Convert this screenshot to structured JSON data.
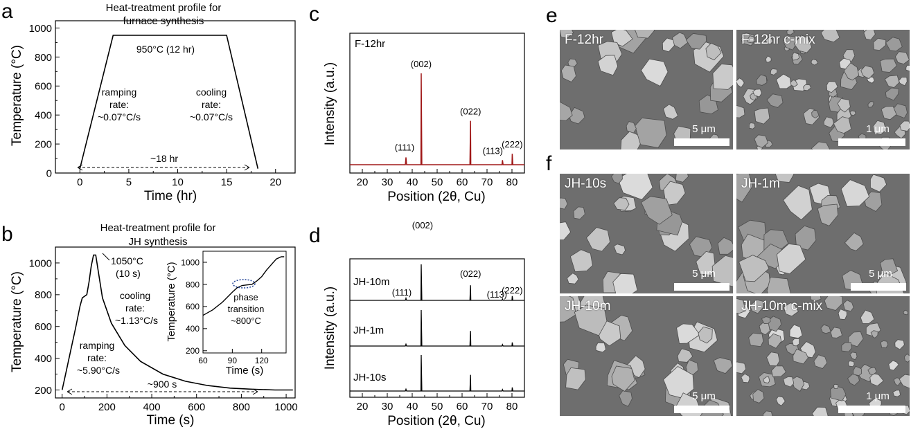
{
  "panels": {
    "a": {
      "letter": "a",
      "title_line1": "Heat-treatment profile for",
      "title_line2": "furnace synthesis",
      "xlabel": "Time (hr)",
      "ylabel": "Temperature (°C)",
      "hold_label": "950°C (12 hr)",
      "ramp_l1": "ramping",
      "ramp_l2": "rate:",
      "ramp_l3": "~0.07°C/s",
      "cool_l1": "cooling",
      "cool_l2": "rate:",
      "cool_l3": "~0.07°C/s",
      "duration_label": "~18 hr"
    },
    "b": {
      "letter": "b",
      "title_line1": "Heat-treatment profile for",
      "title_line2": "JH synthesis",
      "xlabel": "Time (s)",
      "ylabel": "Temperature (°C)",
      "peak_l1": "1050°C",
      "peak_l2": "(10 s)",
      "cool_l1": "cooling",
      "cool_l2": "rate:",
      "cool_l3": "~1.13°C/s",
      "ramp_l1": "ramping",
      "ramp_l2": "rate:",
      "ramp_l3": "~5.90°C/s",
      "duration_label": "~900 s",
      "inset_xlabel": "Time (s)",
      "inset_ylabel": "Temperature (°C)",
      "phase_l1": "phase",
      "phase_l2": "transition",
      "phase_l3": "~800°C"
    },
    "c": {
      "letter": "c",
      "xlabel": "Position (2θ, Cu)",
      "ylabel": "Intensity (a.u.)",
      "sample": "F-12hr",
      "peak_labels": [
        "(111)",
        "(002)",
        "(022)",
        "(113)",
        "(222)"
      ]
    },
    "d": {
      "letter": "d",
      "xlabel": "Position (2θ, Cu)",
      "ylabel": "Intensity (a.u.)",
      "samples": [
        "JH-10m",
        "JH-1m",
        "JH-10s"
      ],
      "peak_labels": [
        "(111)",
        "(002)",
        "(022)",
        "(113)",
        "(222)"
      ]
    },
    "e": {
      "letter": "e",
      "images": [
        {
          "label": "F-12hr",
          "scale": "5 μm"
        },
        {
          "label": "F-12hr c-mix",
          "scale": "1 μm"
        }
      ]
    },
    "f": {
      "letter": "f",
      "images": [
        {
          "label": "JH-10s",
          "scale": "5 μm"
        },
        {
          "label": "JH-1m",
          "scale": "5 μm"
        },
        {
          "label": "JH-10m",
          "scale": "5 μm"
        },
        {
          "label": "JH-10m c-mix",
          "scale": "1 μm"
        }
      ]
    }
  },
  "chart_data": [
    {
      "panel": "a",
      "type": "line",
      "title": "Heat-treatment profile for furnace synthesis",
      "xlabel": "Time (hr)",
      "ylabel": "Temperature (°C)",
      "xlim": [
        -2.5,
        22
      ],
      "ylim": [
        0,
        1050
      ],
      "xticks": [
        0,
        5,
        10,
        15,
        20
      ],
      "yticks": [
        0,
        200,
        400,
        600,
        800,
        1000
      ],
      "series": [
        {
          "x": [
            0,
            3.4,
            15,
            18.2
          ],
          "y": [
            30,
            950,
            950,
            30
          ]
        }
      ]
    },
    {
      "panel": "b",
      "type": "line",
      "title": "Heat-treatment profile for JH synthesis",
      "xlabel": "Time (s)",
      "ylabel": "Temperature (°C)",
      "xlim": [
        -30,
        1040
      ],
      "ylim": [
        150,
        1100
      ],
      "xticks": [
        0,
        200,
        400,
        600,
        800,
        1000
      ],
      "yticks": [
        200,
        400,
        600,
        800,
        1000
      ],
      "series": [
        {
          "x": [
            0,
            20,
            40,
            60,
            80,
            90,
            100,
            110,
            120,
            130,
            140,
            150,
            160,
            180,
            220,
            280,
            350,
            450,
            550,
            650,
            750,
            850,
            950,
            1030
          ],
          "y": [
            200,
            330,
            460,
            590,
            730,
            780,
            790,
            800,
            880,
            980,
            1050,
            1050,
            960,
            780,
            620,
            480,
            380,
            300,
            255,
            228,
            212,
            205,
            200,
            200
          ]
        }
      ],
      "inset": {
        "xlabel": "Time (s)",
        "ylabel": "Temperature (°C)",
        "xlim": [
          60,
          145
        ],
        "ylim": [
          180,
          1100
        ],
        "xticks": [
          60,
          90,
          120
        ],
        "yticks": [
          200,
          400,
          600,
          800,
          1000
        ],
        "series": [
          {
            "x": [
              60,
              70,
              80,
              90,
              95,
              100,
              105,
              110,
              115,
              120,
              125,
              130,
              135,
              140,
              143
            ],
            "y": [
              520,
              570,
              640,
              730,
              770,
              790,
              795,
              800,
              830,
              870,
              930,
              980,
              1030,
              1050,
              1050
            ]
          }
        ]
      }
    },
    {
      "panel": "c",
      "type": "line",
      "xlabel": "Position (2θ, Cu)",
      "ylabel": "Intensity (a.u.)",
      "xlim": [
        15,
        85
      ],
      "xticks": [
        20,
        30,
        40,
        50,
        60,
        70,
        80
      ],
      "series": [
        {
          "name": "F-12hr",
          "peaks_x": [
            37.5,
            43.6,
            63.4,
            76.2,
            80.1
          ],
          "peaks_rel": [
            0.08,
            1.0,
            0.48,
            0.05,
            0.12
          ]
        }
      ]
    },
    {
      "panel": "d",
      "type": "line",
      "xlabel": "Position (2θ, Cu)",
      "ylabel": "Intensity (a.u.)",
      "xlim": [
        15,
        85
      ],
      "xticks": [
        20,
        30,
        40,
        50,
        60,
        70,
        80
      ],
      "series": [
        {
          "name": "JH-10m",
          "peaks_x": [
            37.5,
            43.6,
            63.4,
            76.2,
            80.1
          ],
          "peaks_rel": [
            0.06,
            1.0,
            0.42,
            0.04,
            0.12
          ]
        },
        {
          "name": "JH-1m",
          "peaks_x": [
            37.5,
            43.6,
            63.4,
            76.2,
            80.1
          ],
          "peaks_rel": [
            0.05,
            1.0,
            0.42,
            0.04,
            0.1
          ]
        },
        {
          "name": "JH-10s",
          "peaks_x": [
            37.5,
            43.6,
            63.4,
            76.2,
            80.1
          ],
          "peaks_rel": [
            0.05,
            1.0,
            0.45,
            0.04,
            0.1
          ]
        }
      ]
    }
  ]
}
